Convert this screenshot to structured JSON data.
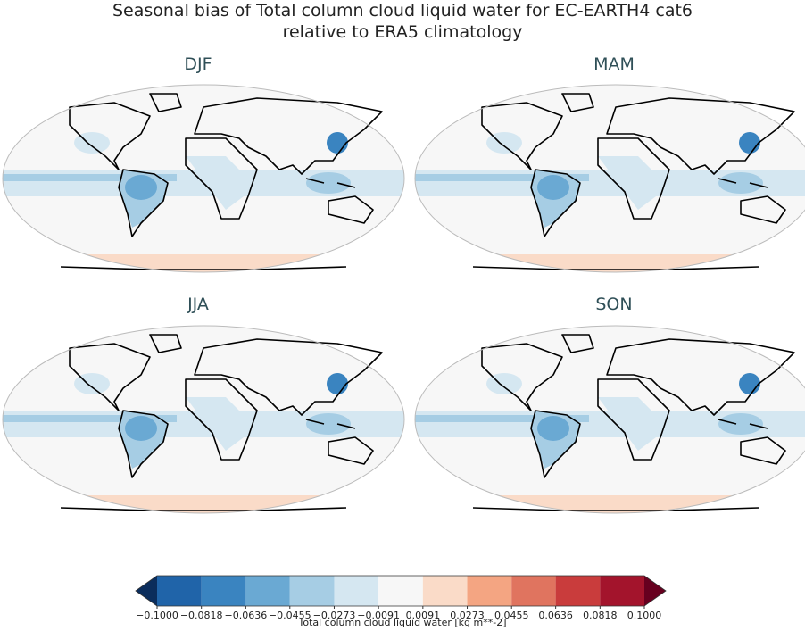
{
  "title": [
    "Seasonal bias of Total column cloud liquid water for EC-EARTH4 cat6",
    "relative to ERA5 climatology"
  ],
  "panels": [
    {
      "title": "DJF"
    },
    {
      "title": "MAM"
    },
    {
      "title": "JJA"
    },
    {
      "title": "SON"
    }
  ],
  "colorbar": {
    "label": "Total column cloud liquid water [kg m**-2]",
    "lim": [
      -0.1,
      0.1
    ],
    "ticks": [
      {
        "value": -0.1,
        "label": "−0.1000"
      },
      {
        "value": -0.0818,
        "label": "−0.0818"
      },
      {
        "value": -0.0636,
        "label": "−0.0636"
      },
      {
        "value": -0.0455,
        "label": "−0.0455"
      },
      {
        "value": -0.0273,
        "label": "−0.0273"
      },
      {
        "value": -0.0091,
        "label": "−0.0091"
      },
      {
        "value": 0.0091,
        "label": "0.0091"
      },
      {
        "value": 0.0273,
        "label": "0.0273"
      },
      {
        "value": 0.0455,
        "label": "0.0455"
      },
      {
        "value": 0.0636,
        "label": "0.0636"
      },
      {
        "value": 0.0818,
        "label": "0.0818"
      },
      {
        "value": 0.1,
        "label": "0.1000"
      }
    ],
    "colors": [
      "#2064a9",
      "#3a84c0",
      "#6aa9d3",
      "#a6cde4",
      "#d5e7f1",
      "#f7f7f7",
      "#fadbc8",
      "#f4a582",
      "#e0745f",
      "#c93c3c",
      "#a3142c"
    ],
    "extend_colors": [
      "#0b2d5c",
      "#67001f"
    ]
  }
}
